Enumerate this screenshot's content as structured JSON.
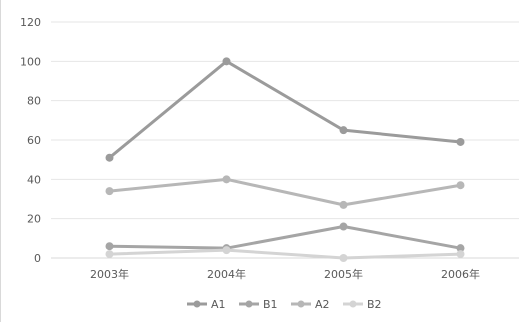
{
  "chart_data": {
    "type": "line",
    "categories": [
      "2003年",
      "2004年",
      "2005年",
      "2006年"
    ],
    "ylim": [
      0,
      120
    ],
    "yticks": [
      0,
      20,
      40,
      60,
      80,
      100,
      120
    ],
    "grid": true,
    "legend_position": "bottom",
    "series": [
      {
        "name": "A1",
        "color": "#9b9b9b",
        "values": [
          51,
          100,
          65,
          59
        ]
      },
      {
        "name": "B1",
        "color": "#a5a5a5",
        "values": [
          6,
          5,
          16,
          5
        ]
      },
      {
        "name": "A2",
        "color": "#b7b7b7",
        "values": [
          34,
          40,
          27,
          37
        ]
      },
      {
        "name": "B2",
        "color": "#d4d4d4",
        "values": [
          2,
          4,
          0,
          2
        ]
      }
    ]
  }
}
